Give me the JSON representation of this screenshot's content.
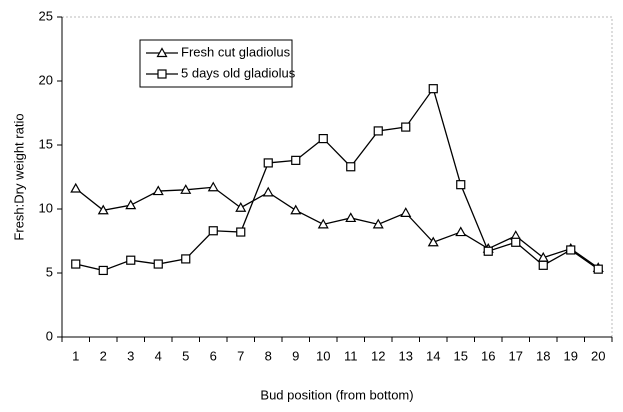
{
  "chart_data": {
    "type": "line",
    "x_label": "Bud position (from bottom)",
    "y_label": "Fresh:Dry weight ratio",
    "categories": [
      "1",
      "2",
      "3",
      "4",
      "5",
      "6",
      "7",
      "8",
      "9",
      "10",
      "11",
      "12",
      "13",
      "14",
      "15",
      "16",
      "17",
      "18",
      "19",
      "20"
    ],
    "series": [
      {
        "name": "Fresh cut gladiolus",
        "color": "#000000",
        "marker": "triangle",
        "values": [
          11.6,
          9.9,
          10.3,
          11.4,
          11.5,
          11.7,
          10.1,
          11.3,
          9.9,
          8.8,
          9.3,
          8.8,
          9.7,
          7.4,
          8.2,
          6.9,
          7.9,
          6.2,
          6.9,
          5.4
        ]
      },
      {
        "name": "5 days old gladiolus",
        "color": "#000000",
        "marker": "square",
        "values": [
          5.7,
          5.2,
          6.0,
          5.7,
          6.1,
          8.3,
          8.2,
          13.6,
          13.8,
          15.5,
          13.3,
          16.1,
          16.4,
          19.4,
          11.9,
          6.7,
          7.4,
          5.6,
          6.8,
          5.3
        ]
      }
    ],
    "ylim": [
      0,
      25
    ],
    "yticks": [
      0,
      5,
      10,
      15,
      20,
      25
    ],
    "grid": false
  }
}
